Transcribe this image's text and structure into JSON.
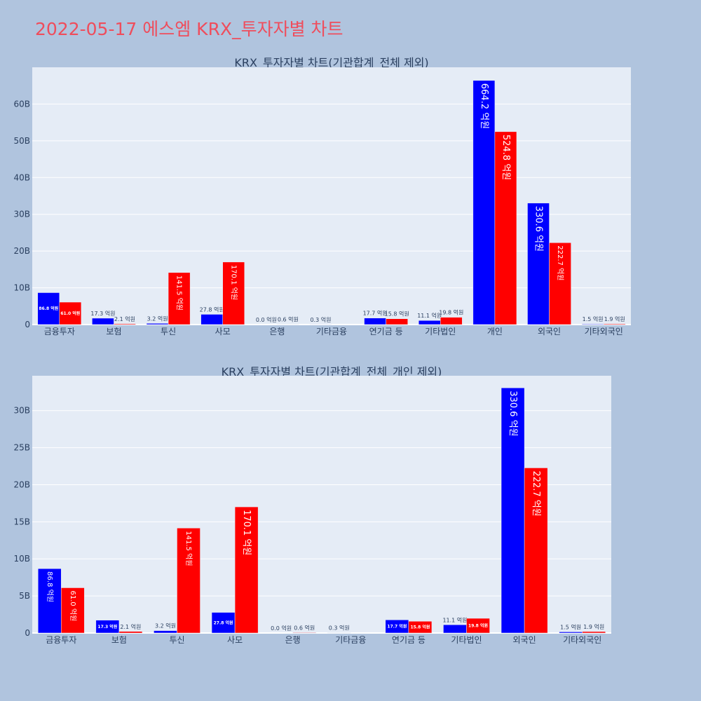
{
  "title": "2022-05-17 에스엠 KRX_투자자별 차트",
  "colors": {
    "buy": "#0000ff",
    "sell": "#ff0000",
    "plot_bg": "#e5ecf6",
    "page_bg": "#b0c4de",
    "title": "#ef4d5c"
  },
  "chart_data": [
    {
      "type": "bar",
      "title": "KRX_투자자별 차트(기관합계_전체 제외)",
      "categories": [
        "금융투자",
        "보험",
        "투신",
        "사모",
        "은행",
        "기타금융",
        "연기금 등",
        "기타법인",
        "개인",
        "외국인",
        "기타외국인"
      ],
      "series": [
        {
          "color": "#0000ff",
          "values": [
            8.68,
            1.73,
            0.32,
            2.78,
            0.0,
            0.03,
            1.77,
            1.11,
            66.42,
            33.06,
            0.15
          ],
          "labels": [
            "86.8 억원",
            "17.3 억원",
            "3.2 억원",
            "27.8 억원",
            "0.0 억원",
            "0.3 억원",
            "17.7 억원",
            "11.1 억원",
            "664.2 억원",
            "330.6 억원",
            "1.5 억원"
          ]
        },
        {
          "color": "#ff0000",
          "values": [
            6.1,
            0.21,
            14.15,
            17.01,
            0.06,
            0.0,
            1.58,
            1.98,
            52.48,
            22.27,
            0.19
          ],
          "labels": [
            "61.0 억원",
            "2.1 억원",
            "141.5 억원",
            "170.1 억원",
            "0.6 억원",
            "",
            "15.8 억원",
            "19.8 억원",
            "524.8 억원",
            "222.7 억원",
            "1.9 억원"
          ]
        }
      ],
      "yticks": [
        0,
        10,
        20,
        30,
        40,
        50,
        60
      ],
      "ytick_labels": [
        "0",
        "10B",
        "20B",
        "30B",
        "40B",
        "50B",
        "60B"
      ],
      "ylim": [
        0,
        70
      ],
      "grid": true
    },
    {
      "type": "bar",
      "title": "KRX_투자자별 차트(기관합계_전체_개인 제외)",
      "categories": [
        "금융투자",
        "보험",
        "투신",
        "사모",
        "은행",
        "기타금융",
        "연기금 등",
        "기타법인",
        "외국인",
        "기타외국인"
      ],
      "series": [
        {
          "color": "#0000ff",
          "values": [
            8.68,
            1.73,
            0.32,
            2.78,
            0.0,
            0.03,
            1.77,
            1.11,
            33.06,
            0.15
          ],
          "labels": [
            "86.8 억원",
            "17.3 억원",
            "3.2 억원",
            "27.8 억원",
            "0.0 억원",
            "0.3 억원",
            "17.7 억원",
            "11.1 억원",
            "330.6 억원",
            "1.5 억원"
          ]
        },
        {
          "color": "#ff0000",
          "values": [
            6.1,
            0.21,
            14.15,
            17.01,
            0.06,
            0.0,
            1.58,
            1.98,
            22.27,
            0.19
          ],
          "labels": [
            "61.0 억원",
            "2.1 억원",
            "141.5 억원",
            "170.1 억원",
            "0.6 억원",
            "",
            "15.8 억원",
            "19.8 억원",
            "222.7 억원",
            "1.9 억원"
          ]
        }
      ],
      "yticks": [
        0,
        5,
        10,
        15,
        20,
        25,
        30
      ],
      "ytick_labels": [
        "0",
        "5B",
        "10B",
        "15B",
        "20B",
        "25B",
        "30B"
      ],
      "ylim": [
        0,
        34.7
      ],
      "grid": true
    }
  ]
}
